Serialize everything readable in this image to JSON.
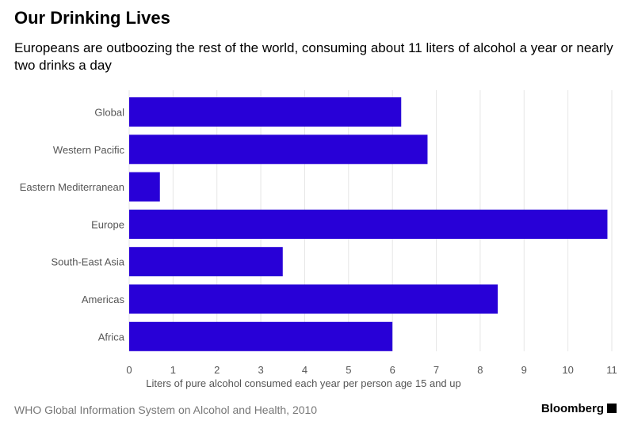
{
  "title": "Our Drinking Lives",
  "subtitle": "Europeans are outboozing the rest of the world, consuming about 11 liters of alcohol a year or nearly two drinks a day",
  "source": "WHO Global Information System on Alcohol and Health, 2010",
  "brand": "Bloomberg",
  "chart_data": {
    "type": "bar",
    "orientation": "horizontal",
    "categories": [
      "Global",
      "Western Pacific",
      "Eastern Mediterranean",
      "Europe",
      "South-East Asia",
      "Americas",
      "Africa"
    ],
    "values": [
      6.2,
      6.8,
      0.7,
      10.9,
      3.5,
      8.4,
      6.0
    ],
    "xlabel": "Liters of pure alcohol consumed each year per person age 15 and up",
    "xlim": [
      0,
      11
    ],
    "xticks": [
      "0",
      "1",
      "2",
      "3",
      "4",
      "5",
      "6",
      "7",
      "8",
      "9",
      "10",
      "11"
    ],
    "grid": true,
    "bar_color": "#2800d7"
  }
}
